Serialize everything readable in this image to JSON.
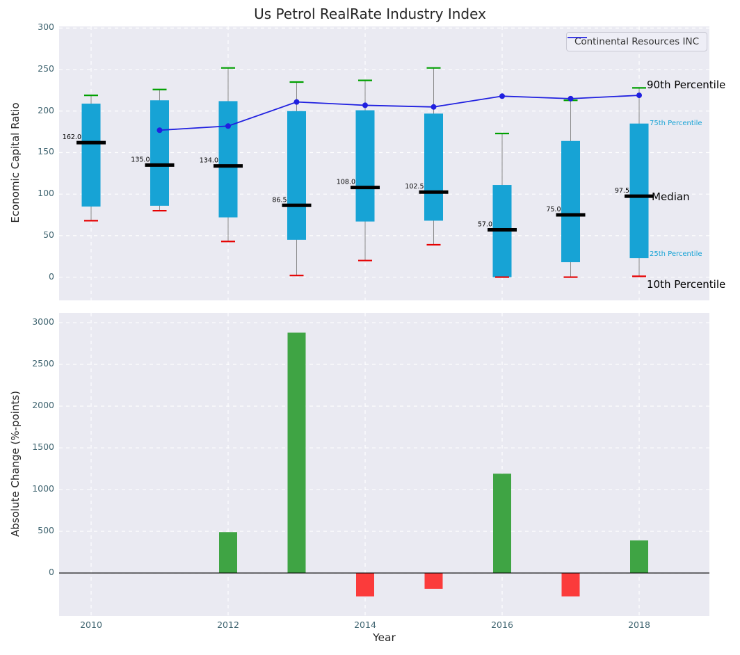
{
  "title": "Us Petrol RealRate Industry Index",
  "legend": {
    "label": "Continental Resources INC"
  },
  "axes": {
    "top_ylabel": "Economic Capital Ratio",
    "bottom_ylabel": "Absolute Change (%-points)",
    "xlabel": "Year"
  },
  "colors": {
    "plot_bg": "#eaeaf2",
    "grid": "#ffffff",
    "box": "#17a3d5",
    "whisker": "#8a8a8a",
    "cap_high": "#00a000",
    "cap_low": "#e60000",
    "median": "#000000",
    "company_line": "#2020e0",
    "bar_positive": "#3fa444",
    "bar_negative": "#fb3b3b",
    "tick_text": "#3f6470",
    "annotation_cyan": "#17a3d5"
  },
  "chart_data": [
    {
      "type": "boxplot+line",
      "title": "Us Petrol RealRate Industry Index",
      "ylabel": "Economic Capital Ratio",
      "ylim": [
        -28,
        302
      ],
      "yticks": [
        0,
        50,
        100,
        150,
        200,
        250,
        300
      ],
      "grid": "dashed",
      "legend_position": "upper right",
      "years": [
        2010,
        2011,
        2012,
        2013,
        2014,
        2015,
        2016,
        2017,
        2018
      ],
      "boxes": [
        {
          "year": 2010,
          "p10": 68,
          "p25": 85,
          "median": 162.0,
          "p75": 209,
          "p90": 219
        },
        {
          "year": 2011,
          "p10": 80,
          "p25": 86,
          "median": 135.0,
          "p75": 213,
          "p90": 226
        },
        {
          "year": 2012,
          "p10": 43,
          "p25": 72,
          "median": 134.0,
          "p75": 212,
          "p90": 252
        },
        {
          "year": 2013,
          "p10": 2,
          "p25": 45,
          "median": 86.5,
          "p75": 200,
          "p90": 235
        },
        {
          "year": 2014,
          "p10": 20,
          "p25": 67,
          "median": 108.0,
          "p75": 201,
          "p90": 237
        },
        {
          "year": 2015,
          "p10": 39,
          "p25": 68,
          "median": 102.5,
          "p75": 197,
          "p90": 252
        },
        {
          "year": 2016,
          "p10": 0,
          "p25": 0,
          "median": 57.0,
          "p75": 111,
          "p90": 173
        },
        {
          "year": 2017,
          "p10": 0,
          "p25": 18,
          "median": 75.0,
          "p75": 164,
          "p90": 213
        },
        {
          "year": 2018,
          "p10": 1,
          "p25": 23,
          "median": 97.5,
          "p75": 185,
          "p90": 228
        }
      ],
      "series": [
        {
          "name": "Continental Resources INC",
          "x": [
            2011,
            2012,
            2013,
            2014,
            2015,
            2016,
            2017,
            2018
          ],
          "y": [
            177,
            182,
            211,
            207,
            205,
            218,
            215,
            219
          ]
        }
      ],
      "annotations": [
        {
          "text": "90th Percentile",
          "value": 232,
          "x": 845,
          "font": 15,
          "color": "#000000"
        },
        {
          "text": "75th Percentile",
          "value": 185,
          "x": 849,
          "font": 10,
          "color": "#17a3d5"
        },
        {
          "text": "Median",
          "value": 97,
          "x": 852,
          "font": 15,
          "color": "#000000"
        },
        {
          "text": "25th Percentile",
          "value": 27,
          "x": 849,
          "font": 10,
          "color": "#17a3d5"
        },
        {
          "text": "10th Percentile",
          "value": -9,
          "x": 845,
          "font": 15,
          "color": "#000000"
        }
      ]
    },
    {
      "type": "bar",
      "ylabel": "Absolute Change (%-points)",
      "xlabel": "Year",
      "ylim": [
        -516,
        3117
      ],
      "yticks": [
        0,
        500,
        1000,
        1500,
        2000,
        2500,
        3000
      ],
      "grid": "dashed",
      "categories": [
        2010,
        2011,
        2012,
        2013,
        2014,
        2015,
        2016,
        2017,
        2018
      ],
      "values": [
        0,
        0,
        490,
        2880,
        -280,
        -190,
        1190,
        -280,
        390
      ],
      "xticks": [
        2010,
        2012,
        2014,
        2016,
        2018
      ]
    }
  ]
}
